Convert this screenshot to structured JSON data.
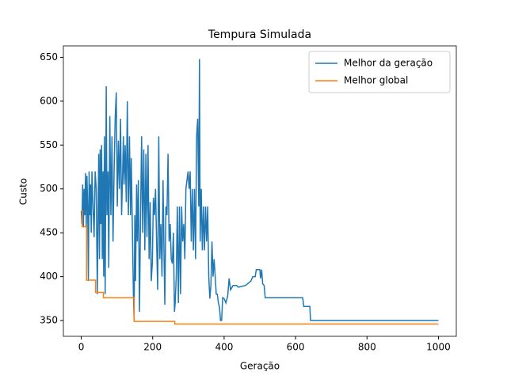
{
  "chart_data": {
    "type": "line",
    "title": "Tempura Simulada",
    "xlabel": "Geração",
    "ylabel": "Custo",
    "xlim": [
      -50,
      1050
    ],
    "ylim": [
      332,
      663
    ],
    "xticks": [
      0,
      200,
      400,
      600,
      800,
      1000
    ],
    "yticks": [
      350,
      400,
      450,
      500,
      550,
      600,
      650
    ],
    "legend": "upper right",
    "series": [
      {
        "name": "Melhor da geração",
        "color": "#1f77b4",
        "x": [
          0,
          2,
          4,
          6,
          8,
          10,
          12,
          14,
          16,
          18,
          20,
          22,
          24,
          26,
          28,
          30,
          33,
          36,
          39,
          42,
          45,
          47,
          49,
          51,
          53,
          55,
          57,
          59,
          61,
          63,
          65,
          67,
          70,
          72,
          75,
          77,
          80,
          83,
          86,
          89,
          92,
          95,
          98,
          101,
          104,
          107,
          110,
          113,
          116,
          118,
          120,
          123,
          126,
          129,
          132,
          135,
          138,
          140,
          143,
          146,
          148,
          150,
          152,
          155,
          157,
          160,
          163,
          166,
          169,
          172,
          175,
          178,
          181,
          184,
          187,
          190,
          193,
          196,
          199,
          202,
          205,
          208,
          211,
          214,
          217,
          220,
          223,
          226,
          229,
          232,
          234,
          237,
          240,
          243,
          246,
          249,
          252,
          255,
          258,
          261,
          263,
          266,
          269,
          272,
          275,
          278,
          281,
          284,
          287,
          290,
          293,
          296,
          299,
          302,
          305,
          308,
          311,
          314,
          317,
          320,
          323,
          326,
          329,
          331,
          333,
          336,
          339,
          342,
          345,
          348,
          351,
          354,
          357,
          360,
          363,
          366,
          369,
          372,
          375,
          378,
          381,
          384,
          387,
          390,
          393,
          396,
          400,
          405,
          410,
          414,
          418,
          425,
          435,
          440,
          460,
          475,
          480,
          487,
          490,
          500,
          502,
          505,
          508,
          512,
          515,
          620,
          623,
          640,
          642,
          1000
        ],
        "values": [
          475,
          460,
          505,
          456,
          500,
          470,
          518,
          456,
          515,
          480,
          395,
          520,
          470,
          505,
          450,
          520,
          480,
          445,
          520,
          500,
          380,
          470,
          540,
          420,
          545,
          460,
          550,
          420,
          520,
          400,
          560,
          380,
          617,
          470,
          520,
          410,
          583,
          470,
          560,
          440,
          520,
          580,
          610,
          480,
          555,
          500,
          580,
          470,
          520,
          560,
          505,
          550,
          485,
          600,
          470,
          560,
          470,
          535,
          460,
          380,
          350,
          470,
          395,
          505,
          440,
          510,
          360,
          465,
          560,
          450,
          545,
          430,
          540,
          445,
          550,
          420,
          485,
          395,
          415,
          490,
          470,
          500,
          440,
          385,
          560,
          420,
          460,
          400,
          510,
          420,
          368,
          480,
          470,
          540,
          440,
          460,
          420,
          415,
          450,
          360,
          370,
          400,
          480,
          370,
          480,
          380,
          480,
          440,
          460,
          420,
          500,
          510,
          520,
          500,
          520,
          440,
          500,
          430,
          500,
          420,
          560,
          580,
          480,
          648,
          440,
          500,
          430,
          480,
          430,
          480,
          440,
          480,
          400,
          375,
          390,
          440,
          400,
          420,
          400,
          380,
          380,
          370,
          365,
          350,
          350,
          376,
          375,
          370,
          378,
          398,
          385,
          390,
          390,
          388,
          390,
          395,
          400,
          400,
          408,
          408,
          398,
          408,
          392,
          390,
          376,
          376,
          366,
          366,
          350,
          350
        ]
      },
      {
        "name": "Melhor global",
        "color": "#ff7f0e",
        "x": [
          0,
          3,
          3,
          15,
          15,
          40,
          40,
          62,
          62,
          148,
          148,
          262,
          262,
          1000
        ],
        "values": [
          475,
          475,
          457,
          457,
          396,
          396,
          382,
          382,
          376,
          376,
          349,
          349,
          346,
          346
        ]
      }
    ]
  }
}
